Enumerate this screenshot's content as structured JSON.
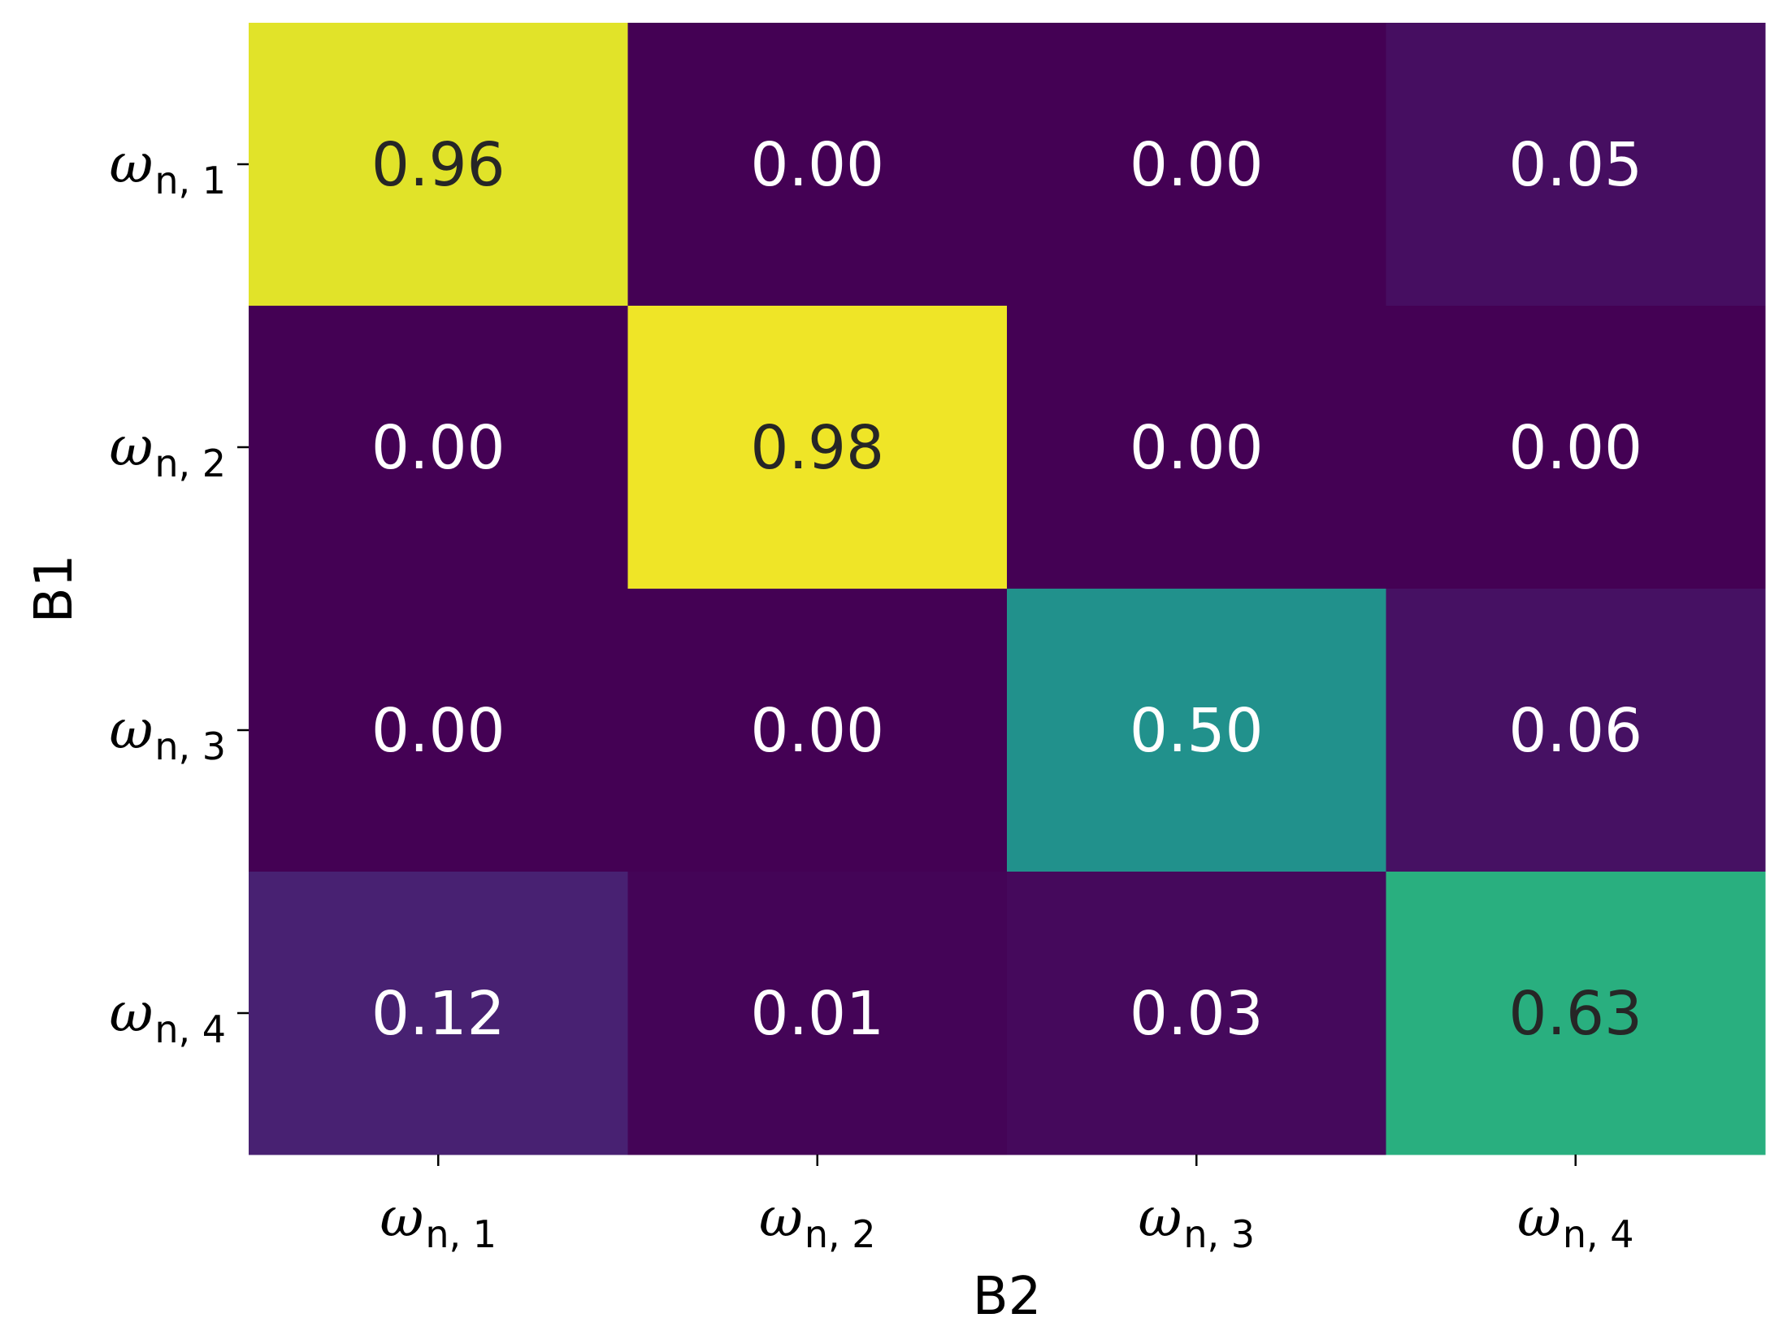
{
  "chart_data": {
    "type": "heatmap",
    "title": "",
    "xlabel": "B2",
    "ylabel": "B1",
    "x_categories": [
      {
        "base": "ω",
        "sub": "n, 1"
      },
      {
        "base": "ω",
        "sub": "n, 2"
      },
      {
        "base": "ω",
        "sub": "n, 3"
      },
      {
        "base": "ω",
        "sub": "n, 4"
      }
    ],
    "y_categories": [
      {
        "base": "ω",
        "sub": "n, 1"
      },
      {
        "base": "ω",
        "sub": "n, 2"
      },
      {
        "base": "ω",
        "sub": "n, 3"
      },
      {
        "base": "ω",
        "sub": "n, 4"
      }
    ],
    "values": [
      [
        0.96,
        0.0,
        0.0,
        0.05
      ],
      [
        0.0,
        0.98,
        0.0,
        0.0
      ],
      [
        0.0,
        0.0,
        0.5,
        0.06
      ],
      [
        0.12,
        0.01,
        0.03,
        0.63
      ]
    ],
    "labels": [
      [
        "0.96",
        "0.00",
        "0.00",
        "0.05"
      ],
      [
        "0.00",
        "0.98",
        "0.00",
        "0.00"
      ],
      [
        "0.00",
        "0.00",
        "0.50",
        "0.06"
      ],
      [
        "0.12",
        "0.01",
        "0.03",
        "0.63"
      ]
    ],
    "value_range": [
      0,
      1
    ],
    "colormap": "viridis",
    "grid": false,
    "colorbar": false,
    "text_color_dark": "#262626",
    "text_color_light": "#ffffff"
  }
}
